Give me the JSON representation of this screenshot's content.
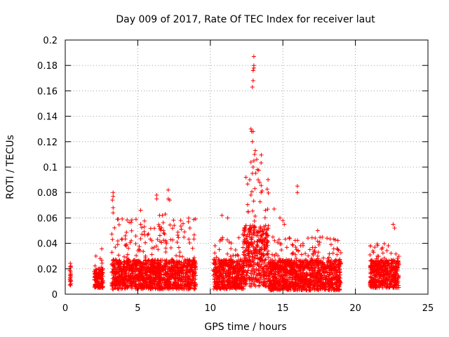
{
  "chart_data": {
    "type": "scatter",
    "title": "Day 009 of 2017, Rate Of TEC Index for receiver laut",
    "xlabel": "GPS time / hours",
    "ylabel": "ROTI / TECUs",
    "xlim": [
      0,
      25
    ],
    "ylim": [
      0,
      0.2
    ],
    "x_ticks": [
      0,
      5,
      10,
      15,
      20,
      25
    ],
    "x_tick_labels": [
      "0",
      "5",
      "10",
      "15",
      "20",
      "25"
    ],
    "y_ticks": [
      0,
      0.02,
      0.04,
      0.06,
      0.08,
      0.1,
      0.12,
      0.14,
      0.16,
      0.18,
      0.2
    ],
    "y_tick_labels": [
      "0",
      "0.02",
      "0.04",
      "0.06",
      "0.08",
      "0.1",
      "0.12",
      "0.14",
      "0.16",
      "0.18",
      "0.2"
    ],
    "grid": true,
    "marker": "+",
    "color": "#ff0000",
    "series": [
      {
        "data_segments": [
          {
            "x_start": 0.3,
            "x_end": 0.4,
            "y_min": 0.007,
            "y_typ": 0.02,
            "y_max": 0.031
          },
          {
            "x_start": 2.0,
            "x_end": 2.6,
            "y_min": 0.005,
            "y_typ": 0.015,
            "y_max": 0.038
          },
          {
            "x_start": 3.2,
            "x_end": 9.0,
            "y_min": 0.004,
            "y_typ": 0.02,
            "y_max": 0.06
          },
          {
            "x_start": 10.2,
            "x_end": 12.3,
            "y_min": 0.004,
            "y_typ": 0.02,
            "y_max": 0.05
          },
          {
            "x_start": 12.3,
            "x_end": 14.0,
            "y_min": 0.006,
            "y_typ": 0.04,
            "y_max": 0.11
          },
          {
            "x_start": 14.0,
            "x_end": 19.0,
            "y_min": 0.003,
            "y_typ": 0.02,
            "y_max": 0.045
          },
          {
            "x_start": 21.0,
            "x_end": 23.0,
            "y_min": 0.005,
            "y_typ": 0.02,
            "y_max": 0.04
          }
        ],
        "outliers": [
          {
            "x": 3.3,
            "y": 0.08
          },
          {
            "x": 3.3,
            "y": 0.077
          },
          {
            "x": 3.25,
            "y": 0.074
          },
          {
            "x": 3.3,
            "y": 0.064
          },
          {
            "x": 3.3,
            "y": 0.068
          },
          {
            "x": 5.2,
            "x2": 5.3,
            "y": 0.066
          },
          {
            "x": 5.2,
            "y": 0.055
          },
          {
            "x": 6.3,
            "y": 0.078
          },
          {
            "x": 6.3,
            "y": 0.075
          },
          {
            "x": 6.5,
            "y": 0.062
          },
          {
            "x": 7.1,
            "y": 0.082
          },
          {
            "x": 7.1,
            "y": 0.075
          },
          {
            "x": 7.2,
            "y": 0.074
          },
          {
            "x": 6.7,
            "y": 0.062
          },
          {
            "x": 6.9,
            "y": 0.063
          },
          {
            "x": 10.8,
            "y": 0.062
          },
          {
            "x": 11.2,
            "y": 0.06
          },
          {
            "x": 12.6,
            "y": 0.065
          },
          {
            "x": 12.8,
            "y": 0.078
          },
          {
            "x": 12.9,
            "y": 0.095
          },
          {
            "x": 12.95,
            "y": 0.1
          },
          {
            "x": 13.0,
            "y": 0.105
          },
          {
            "x": 13.05,
            "y": 0.11
          },
          {
            "x": 13.1,
            "y": 0.113
          },
          {
            "x": 13.2,
            "y": 0.106
          },
          {
            "x": 13.3,
            "y": 0.09
          },
          {
            "x": 13.4,
            "y": 0.088
          },
          {
            "x": 13.5,
            "y": 0.08
          },
          {
            "x": 12.9,
            "y": 0.12
          },
          {
            "x": 12.95,
            "y": 0.128
          },
          {
            "x": 12.85,
            "y": 0.128
          },
          {
            "x": 12.8,
            "y": 0.13
          },
          {
            "x": 12.9,
            "y": 0.163
          },
          {
            "x": 12.95,
            "y": 0.168
          },
          {
            "x": 12.95,
            "y": 0.176
          },
          {
            "x": 13.0,
            "y": 0.178
          },
          {
            "x": 13.0,
            "y": 0.18
          },
          {
            "x": 13.0,
            "y": 0.187
          },
          {
            "x": 13.8,
            "y": 0.066
          },
          {
            "x": 14.4,
            "y": 0.067
          },
          {
            "x": 14.8,
            "y": 0.06
          },
          {
            "x": 15.0,
            "y": 0.058
          },
          {
            "x": 15.1,
            "y": 0.055
          },
          {
            "x": 16.0,
            "y": 0.085
          },
          {
            "x": 16.0,
            "y": 0.08
          },
          {
            "x": 17.4,
            "y": 0.05
          },
          {
            "x": 22.6,
            "y": 0.055
          },
          {
            "x": 22.7,
            "y": 0.052
          }
        ]
      }
    ]
  }
}
